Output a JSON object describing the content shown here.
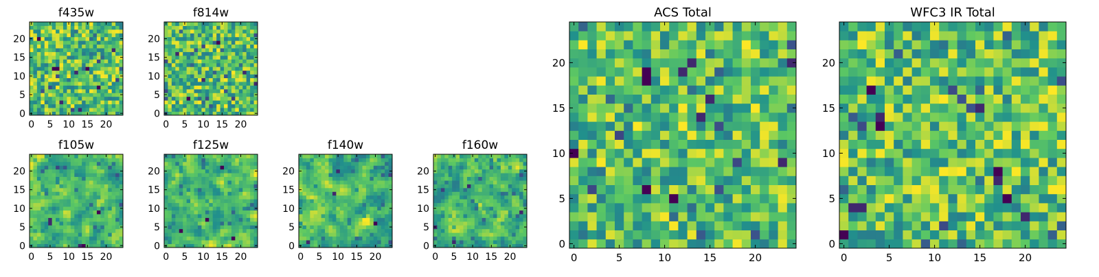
{
  "figure": {
    "colormap": "viridis",
    "colormap_stops": [
      "#440154",
      "#3b528b",
      "#21918c",
      "#5ec962",
      "#fde725"
    ]
  },
  "chart_data": [
    {
      "id": "f435w",
      "type": "heatmap",
      "title": "f435w",
      "grid_size": [
        25,
        25
      ],
      "xlim": [
        0,
        24
      ],
      "ylim": [
        0,
        24
      ],
      "xticks": [
        0,
        5,
        10,
        15,
        20
      ],
      "yticks": [
        0,
        5,
        10,
        15,
        20
      ],
      "grid": false,
      "seed": 11,
      "smooth": 0,
      "dark_spots": [
        [
          6,
          12
        ],
        [
          7,
          12
        ],
        [
          12,
          11
        ],
        [
          15,
          12
        ],
        [
          18,
          7
        ],
        [
          8,
          3
        ],
        [
          13,
          1
        ],
        [
          2,
          20
        ],
        [
          22,
          17
        ]
      ]
    },
    {
      "id": "f814w",
      "type": "heatmap",
      "title": "f814w",
      "grid_size": [
        25,
        25
      ],
      "xlim": [
        0,
        24
      ],
      "ylim": [
        0,
        24
      ],
      "xticks": [
        0,
        5,
        10,
        15,
        20
      ],
      "yticks": [
        0,
        5,
        10,
        15,
        20
      ],
      "grid": false,
      "seed": 23,
      "smooth": 0,
      "dark_spots": [
        [
          3,
          16
        ],
        [
          10,
          9
        ],
        [
          21,
          11
        ],
        [
          6,
          4
        ],
        [
          24,
          8
        ],
        [
          14,
          19
        ]
      ]
    },
    {
      "id": "f105w",
      "type": "heatmap",
      "title": "f105w",
      "grid_size": [
        25,
        25
      ],
      "xlim": [
        0,
        24
      ],
      "ylim": [
        0,
        24
      ],
      "xticks": [
        0,
        5,
        10,
        15,
        20
      ],
      "yticks": [
        0,
        5,
        10,
        15,
        20
      ],
      "grid": false,
      "seed": 37,
      "smooth": 1,
      "dark_spots": [
        [
          5,
          7
        ],
        [
          5,
          6
        ],
        [
          13,
          0
        ],
        [
          14,
          0
        ],
        [
          18,
          9
        ]
      ]
    },
    {
      "id": "f125w",
      "type": "heatmap",
      "title": "f125w",
      "grid_size": [
        25,
        25
      ],
      "xlim": [
        0,
        24
      ],
      "ylim": [
        0,
        24
      ],
      "xticks": [
        0,
        5,
        10,
        15,
        20
      ],
      "yticks": [
        0,
        5,
        10,
        15,
        20
      ],
      "grid": false,
      "seed": 41,
      "smooth": 1,
      "dark_spots": [
        [
          15,
          21
        ],
        [
          4,
          4
        ],
        [
          11,
          7
        ],
        [
          18,
          2
        ]
      ]
    },
    {
      "id": "f140w",
      "type": "heatmap",
      "title": "f140w",
      "grid_size": [
        25,
        25
      ],
      "xlim": [
        0,
        24
      ],
      "ylim": [
        0,
        24
      ],
      "xticks": [
        0,
        5,
        10,
        15,
        20
      ],
      "yticks": [
        0,
        5,
        10,
        15,
        20
      ],
      "grid": false,
      "seed": 53,
      "smooth": 1,
      "dark_spots": [
        [
          10,
          20
        ],
        [
          9,
          14
        ],
        [
          2,
          1
        ],
        [
          20,
          6
        ]
      ]
    },
    {
      "id": "f160w",
      "type": "heatmap",
      "title": "f160w",
      "grid_size": [
        25,
        25
      ],
      "xlim": [
        0,
        24
      ],
      "ylim": [
        0,
        24
      ],
      "xticks": [
        0,
        5,
        10,
        15,
        20
      ],
      "yticks": [
        0,
        5,
        10,
        15,
        20
      ],
      "grid": false,
      "seed": 67,
      "smooth": 1,
      "dark_spots": [
        [
          0,
          5
        ],
        [
          9,
          16
        ],
        [
          23,
          9
        ],
        [
          5,
          1
        ]
      ]
    },
    {
      "id": "acs_total",
      "type": "heatmap",
      "title": "ACS Total",
      "grid_size": [
        25,
        25
      ],
      "xlim": [
        0,
        24
      ],
      "ylim": [
        0,
        24
      ],
      "xticks": [
        0,
        5,
        10,
        15,
        20
      ],
      "yticks": [
        0,
        5,
        10,
        15,
        20
      ],
      "grid": false,
      "seed": 79,
      "smooth": 0,
      "dark_spots": [
        [
          8,
          18
        ],
        [
          8,
          19
        ],
        [
          12,
          19
        ],
        [
          13,
          20
        ],
        [
          15,
          16
        ],
        [
          14,
          14
        ],
        [
          0,
          10
        ],
        [
          23,
          9
        ],
        [
          8,
          6
        ],
        [
          11,
          5
        ],
        [
          24,
          20
        ]
      ]
    },
    {
      "id": "wfc3_ir_total",
      "type": "heatmap",
      "title": "WFC3 IR Total",
      "grid_size": [
        25,
        25
      ],
      "xlim": [
        0,
        24
      ],
      "ylim": [
        0,
        24
      ],
      "xticks": [
        0,
        5,
        10,
        15,
        20
      ],
      "yticks": [
        0,
        5,
        10,
        15,
        20
      ],
      "grid": false,
      "seed": 97,
      "smooth": 0,
      "dark_spots": [
        [
          4,
          14
        ],
        [
          4,
          13
        ],
        [
          17,
          8
        ],
        [
          17,
          7
        ],
        [
          15,
          15
        ],
        [
          0,
          1
        ],
        [
          1,
          4
        ],
        [
          2,
          4
        ],
        [
          20,
          3
        ],
        [
          18,
          5
        ],
        [
          3,
          17
        ]
      ]
    }
  ]
}
